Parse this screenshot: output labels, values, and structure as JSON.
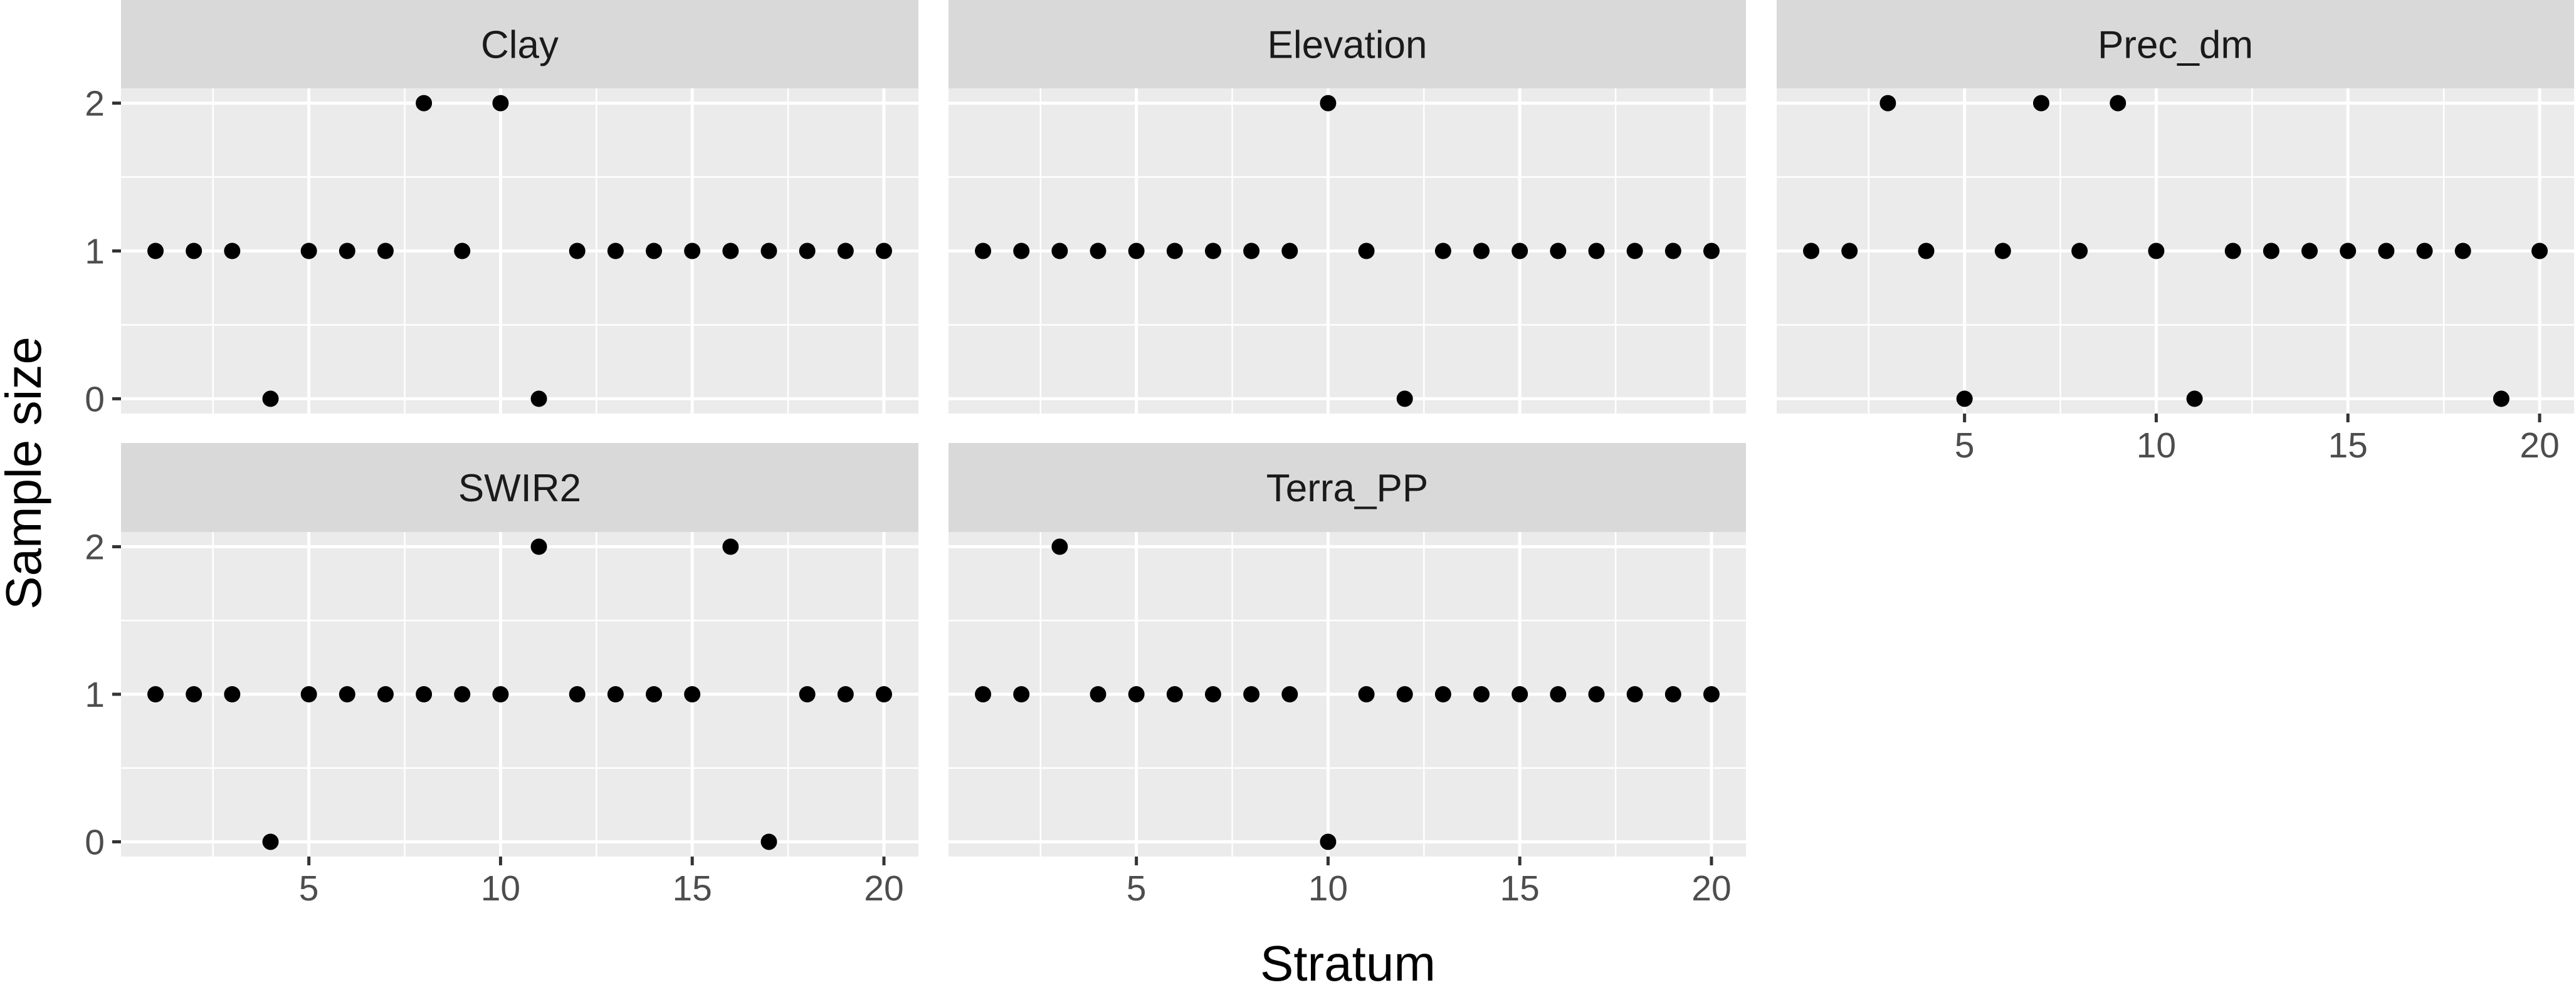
{
  "chart_data": {
    "type": "scatter",
    "xlabel": "Stratum",
    "ylabel": "Sample size",
    "xlim": [
      0.1,
      20.9
    ],
    "ylim": [
      -0.1,
      2.1
    ],
    "x_ticks": [
      5,
      10,
      15,
      20
    ],
    "x_tick_labels": [
      "5",
      "10",
      "15",
      "20"
    ],
    "y_ticks": [
      0,
      1,
      2
    ],
    "y_tick_labels": [
      "0",
      "1",
      "2"
    ],
    "grid": true,
    "point_color": "#000000",
    "panels": [
      {
        "name": "Clay",
        "x": [
          1,
          2,
          3,
          4,
          5,
          6,
          7,
          8,
          9,
          10,
          11,
          12,
          13,
          14,
          15,
          16,
          17,
          18,
          19,
          20
        ],
        "y": [
          1,
          1,
          1,
          0,
          1,
          1,
          1,
          2,
          1,
          2,
          0,
          1,
          1,
          1,
          1,
          1,
          1,
          1,
          1,
          1
        ]
      },
      {
        "name": "Elevation",
        "x": [
          1,
          2,
          3,
          4,
          5,
          6,
          7,
          8,
          9,
          10,
          11,
          12,
          13,
          14,
          15,
          16,
          17,
          18,
          19,
          20
        ],
        "y": [
          1,
          1,
          1,
          1,
          1,
          1,
          1,
          1,
          1,
          2,
          1,
          0,
          1,
          1,
          1,
          1,
          1,
          1,
          1,
          1
        ]
      },
      {
        "name": "Prec_dm",
        "x": [
          1,
          2,
          3,
          4,
          5,
          6,
          7,
          8,
          9,
          10,
          11,
          12,
          13,
          14,
          15,
          16,
          17,
          18,
          19,
          20
        ],
        "y": [
          1,
          1,
          2,
          1,
          0,
          1,
          2,
          1,
          2,
          1,
          0,
          1,
          1,
          1,
          1,
          1,
          1,
          1,
          0,
          1
        ]
      },
      {
        "name": "SWIR2",
        "x": [
          1,
          2,
          3,
          4,
          5,
          6,
          7,
          8,
          9,
          10,
          11,
          12,
          13,
          14,
          15,
          16,
          17,
          18,
          19,
          20
        ],
        "y": [
          1,
          1,
          1,
          0,
          1,
          1,
          1,
          1,
          1,
          1,
          2,
          1,
          1,
          1,
          1,
          2,
          0,
          1,
          1,
          1
        ]
      },
      {
        "name": "Terra_PP",
        "x": [
          1,
          2,
          3,
          4,
          5,
          6,
          7,
          8,
          9,
          10,
          11,
          12,
          13,
          14,
          15,
          16,
          17,
          18,
          19,
          20
        ],
        "y": [
          1,
          1,
          2,
          1,
          1,
          1,
          1,
          1,
          1,
          0,
          1,
          1,
          1,
          1,
          1,
          1,
          1,
          1,
          1,
          1
        ]
      }
    ]
  }
}
